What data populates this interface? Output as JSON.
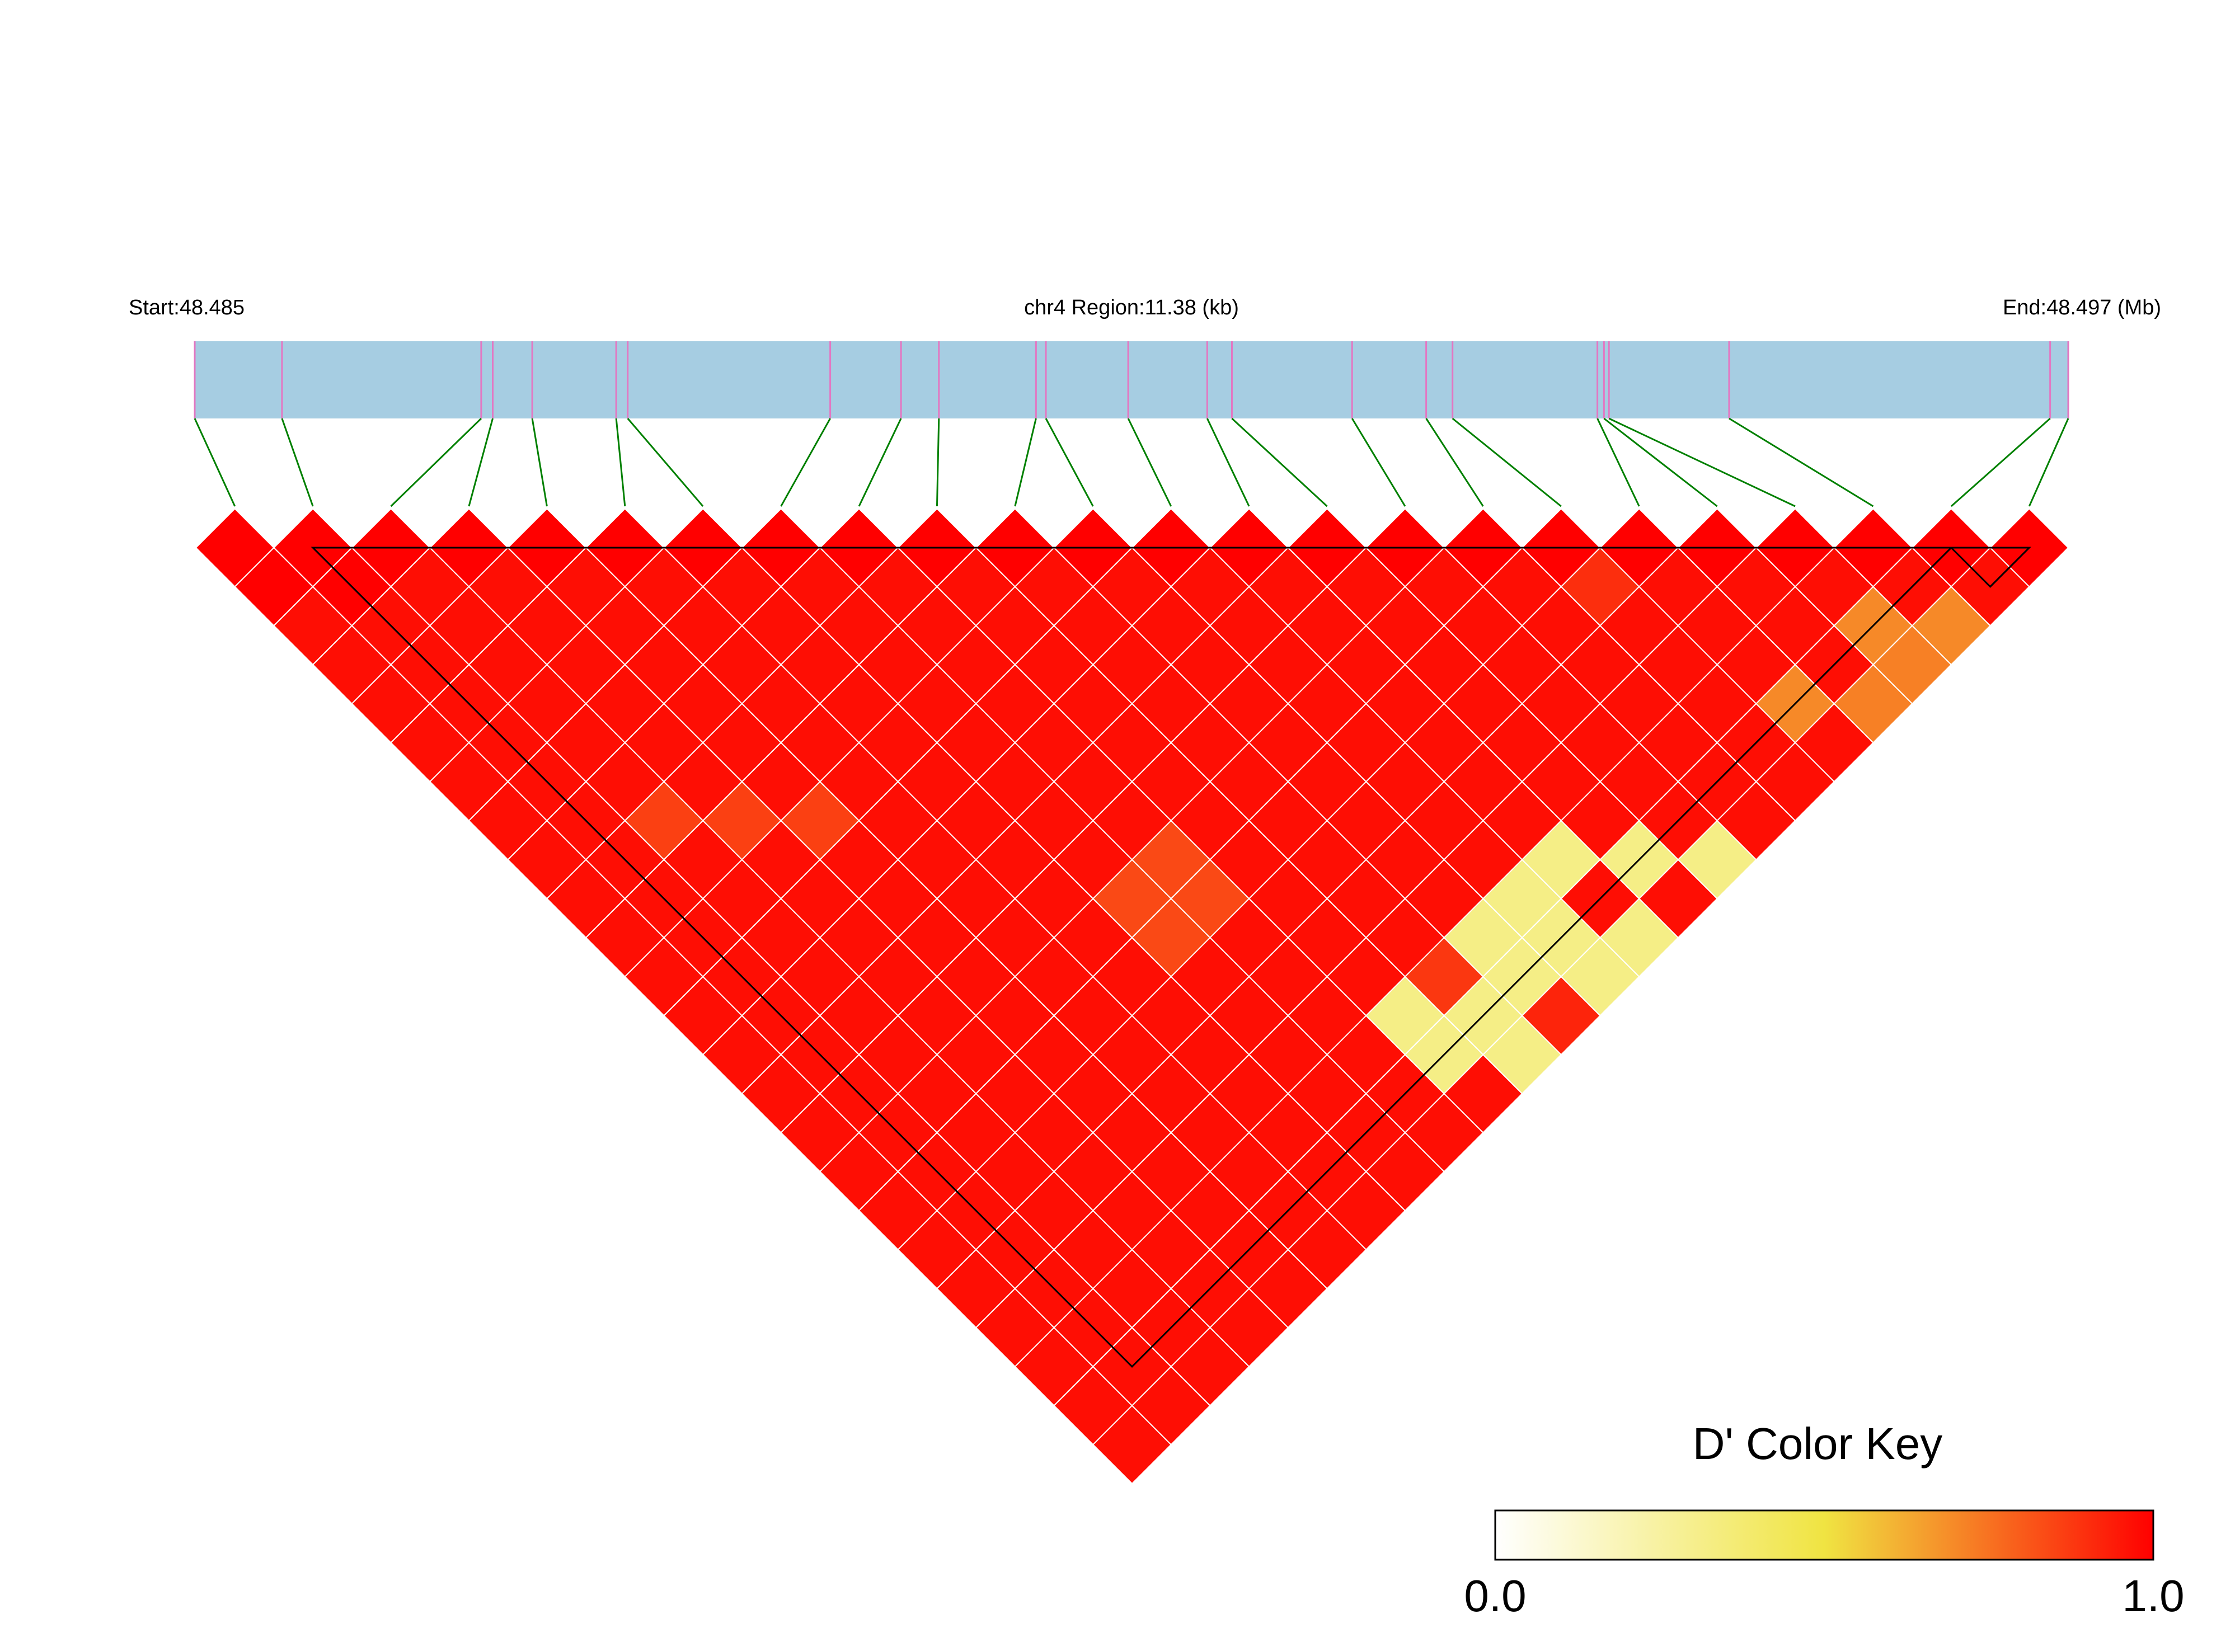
{
  "header": {
    "start_label": "Start:48.485",
    "region_label": "chr4 Region:11.38 (kb)",
    "end_label": "End:48.497 (Mb)"
  },
  "legend": {
    "title": "D' Color Key",
    "min_label": "0.0",
    "max_label": "1.0",
    "gradient_stops": [
      "#ffffff",
      "#f0e442",
      "#ff0000"
    ]
  },
  "colors": {
    "chromosome_bar": "#a6cde2",
    "snp_tick": "#e377c2",
    "connector": "#008000",
    "cell_border": "#ffffff",
    "block_outline": "#000000",
    "high_ld": "#ff0000",
    "low_ld": "#f0e95a"
  },
  "chart_data": {
    "type": "heatmap",
    "measure": "D'",
    "value_range": [
      0,
      1
    ],
    "region": {
      "chromosome": "chr4",
      "start_mb": 48.485,
      "end_mb": 48.497,
      "length_kb": 11.38
    },
    "snp_positions_mb": [
      48.485,
      48.48553,
      48.48674,
      48.48681,
      48.48705,
      48.48756,
      48.48763,
      48.48886,
      48.48929,
      48.48952,
      48.49011,
      48.49017,
      48.49067,
      48.49115,
      48.4913,
      48.49203,
      48.49248,
      48.49264,
      48.49352,
      48.49356,
      48.49359,
      48.49432,
      48.49627,
      48.49638
    ],
    "default_value": 0.97,
    "cells": [
      {
        "i": 0,
        "j": 1,
        "v": 1.0
      },
      {
        "i": 1,
        "j": 2,
        "v": 1.0
      },
      {
        "i": 17,
        "j": 18,
        "v": 0.9
      },
      {
        "i": 2,
        "j": 9,
        "v": 0.86
      },
      {
        "i": 3,
        "j": 10,
        "v": 0.86
      },
      {
        "i": 4,
        "j": 11,
        "v": 0.86
      },
      {
        "i": 20,
        "j": 22,
        "v": 0.7
      },
      {
        "i": 21,
        "j": 23,
        "v": 0.7
      },
      {
        "i": 20,
        "j": 23,
        "v": 0.72
      },
      {
        "i": 18,
        "j": 22,
        "v": 0.7
      },
      {
        "i": 19,
        "j": 23,
        "v": 0.72
      },
      {
        "i": 7,
        "j": 16,
        "v": 0.84
      },
      {
        "i": 8,
        "j": 17,
        "v": 0.84
      },
      {
        "i": 7,
        "j": 17,
        "v": 0.84
      },
      {
        "i": 8,
        "j": 16,
        "v": 0.84
      },
      {
        "i": 13,
        "j": 21,
        "v": 0.32
      },
      {
        "i": 14,
        "j": 22,
        "v": 0.32
      },
      {
        "i": 15,
        "j": 23,
        "v": 0.32
      },
      {
        "i": 11,
        "j": 22,
        "v": 0.32
      },
      {
        "i": 12,
        "j": 22,
        "v": 0.32
      },
      {
        "i": 12,
        "j": 23,
        "v": 0.32
      },
      {
        "i": 13,
        "j": 23,
        "v": 0.32
      },
      {
        "i": 11,
        "j": 21,
        "v": 0.32
      },
      {
        "i": 12,
        "j": 21,
        "v": 0.32
      },
      {
        "i": 10,
        "j": 22,
        "v": 0.32
      },
      {
        "i": 9,
        "j": 21,
        "v": 0.32
      },
      {
        "i": 9,
        "j": 22,
        "v": 0.32
      },
      {
        "i": 10,
        "j": 23,
        "v": 0.32
      },
      {
        "i": 10,
        "j": 21,
        "v": 0.88
      },
      {
        "i": 11,
        "j": 23,
        "v": 0.92
      }
    ],
    "blocks": [
      {
        "first": 1,
        "last": 22
      },
      {
        "first": 22,
        "last": 23
      }
    ]
  }
}
